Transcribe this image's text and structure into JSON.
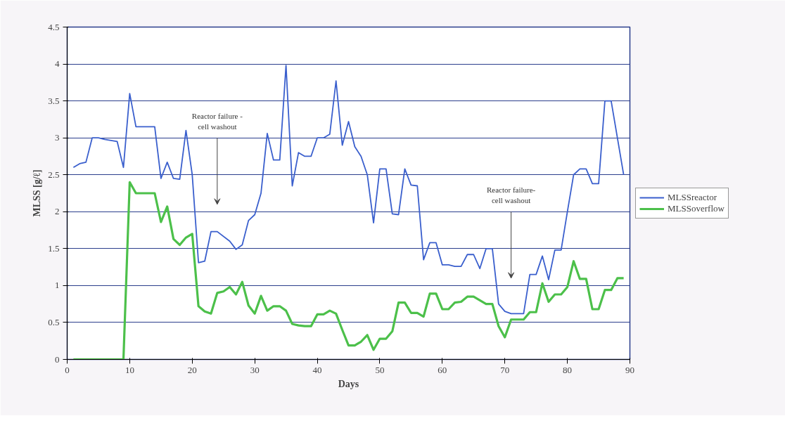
{
  "chart_data": {
    "type": "line",
    "xlabel": "Days",
    "ylabel": "MLSS [g/ℓ]",
    "xlim": [
      0,
      90
    ],
    "xticks": [
      0,
      10,
      20,
      30,
      40,
      50,
      60,
      70,
      80,
      90
    ],
    "ylim": [
      0,
      4.5
    ],
    "yticks": [
      0,
      0.5,
      1,
      1.5,
      2,
      2.5,
      3,
      3.5,
      4,
      4.5
    ],
    "grid": "y",
    "legend": "right",
    "marker": "none",
    "line_style": "solid",
    "annotations": [
      "Reactor failure - cell washout",
      "Reactor failure- cell washout"
    ],
    "series": [
      {
        "name": "MLSSreactor",
        "color": "#3a5fcd",
        "x": [
          1,
          2,
          3,
          4,
          5,
          6,
          8,
          9,
          10,
          11,
          14,
          15,
          16,
          17,
          18,
          19,
          20,
          21,
          22,
          23,
          24,
          26,
          27,
          28,
          29,
          30,
          31,
          32,
          33,
          34,
          35,
          36,
          37,
          38,
          39,
          40,
          41,
          42,
          43,
          44,
          45,
          46,
          47,
          48,
          49,
          50,
          51,
          52,
          53,
          54,
          55,
          56,
          57,
          58,
          59,
          60,
          61,
          62,
          63,
          64,
          65,
          66,
          67,
          68,
          69,
          70,
          71,
          72,
          73,
          74,
          75,
          76,
          77,
          78,
          79,
          80,
          81,
          82,
          83,
          84,
          85,
          86,
          87,
          89
        ],
        "values": [
          2.6,
          2.65,
          2.67,
          3.0,
          3.0,
          2.98,
          2.95,
          2.6,
          3.6,
          3.15,
          3.15,
          2.45,
          2.67,
          2.45,
          2.44,
          3.1,
          2.5,
          1.31,
          1.33,
          1.73,
          1.73,
          1.6,
          1.49,
          1.55,
          1.88,
          1.96,
          2.25,
          3.06,
          2.7,
          2.7,
          3.98,
          2.35,
          2.8,
          2.75,
          2.75,
          3.0,
          3.0,
          3.05,
          3.77,
          2.9,
          3.22,
          2.88,
          2.75,
          2.5,
          1.85,
          2.58,
          2.58,
          1.97,
          1.96,
          2.58,
          2.36,
          2.35,
          1.35,
          1.58,
          1.58,
          1.28,
          1.28,
          1.26,
          1.26,
          1.42,
          1.42,
          1.23,
          1.5,
          1.5,
          0.75,
          0.65,
          0.62,
          0.62,
          0.62,
          1.15,
          1.15,
          1.4,
          1.08,
          1.48,
          1.48,
          2.0,
          2.5,
          2.58,
          2.58,
          2.38,
          2.38,
          3.5,
          3.5,
          2.5
        ]
      },
      {
        "name": "MLSSoverflow",
        "color": "#4cc04a",
        "x": [
          1,
          9,
          10,
          11,
          14,
          15,
          16,
          17,
          18,
          19,
          20,
          21,
          22,
          23,
          24,
          25,
          26,
          27,
          28,
          29,
          30,
          31,
          32,
          33,
          34,
          35,
          36,
          37,
          38,
          39,
          40,
          41,
          42,
          43,
          44,
          45,
          46,
          47,
          48,
          49,
          50,
          51,
          52,
          53,
          54,
          55,
          56,
          57,
          58,
          59,
          60,
          61,
          62,
          63,
          64,
          65,
          66,
          67,
          68,
          69,
          70,
          71,
          72,
          73,
          74,
          75,
          76,
          77,
          78,
          79,
          80,
          81,
          82,
          83,
          84,
          85,
          86,
          87,
          88,
          89
        ],
        "values": [
          0,
          0,
          2.4,
          2.25,
          2.25,
          1.86,
          2.07,
          1.63,
          1.55,
          1.65,
          1.7,
          0.72,
          0.65,
          0.62,
          0.9,
          0.92,
          0.98,
          0.88,
          1.05,
          0.73,
          0.62,
          0.86,
          0.66,
          0.72,
          0.72,
          0.66,
          0.48,
          0.46,
          0.45,
          0.45,
          0.61,
          0.61,
          0.66,
          0.62,
          0.4,
          0.19,
          0.19,
          0.24,
          0.33,
          0.13,
          0.28,
          0.28,
          0.38,
          0.77,
          0.77,
          0.63,
          0.63,
          0.58,
          0.89,
          0.89,
          0.68,
          0.68,
          0.77,
          0.78,
          0.85,
          0.85,
          0.8,
          0.75,
          0.75,
          0.45,
          0.3,
          0.54,
          0.54,
          0.54,
          0.64,
          0.64,
          1.03,
          0.78,
          0.88,
          0.88,
          0.98,
          1.33,
          1.09,
          1.09,
          0.68,
          0.68,
          0.94,
          0.94,
          1.1,
          1.1
        ]
      }
    ]
  }
}
